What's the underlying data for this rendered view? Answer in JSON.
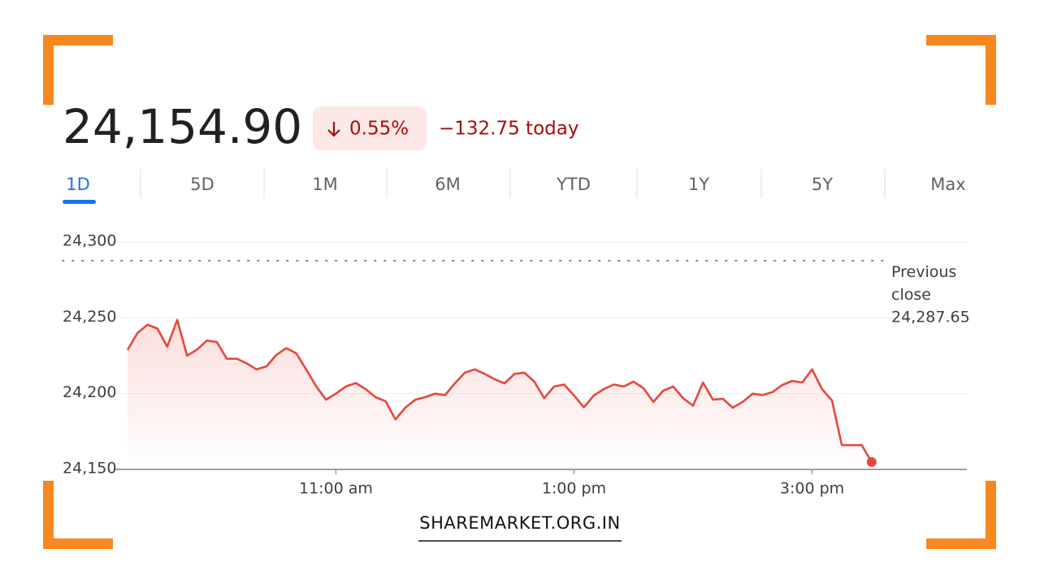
{
  "quote": {
    "price": "24,154.90",
    "change_percent": "0.55%",
    "change": "−132.75 today"
  },
  "tabs": [
    "1D",
    "5D",
    "1M",
    "6M",
    "YTD",
    "1Y",
    "5Y",
    "Max"
  ],
  "chart_data": {
    "type": "line",
    "color": "#e5483d",
    "x": [
      9.25,
      9.333,
      9.417,
      9.5,
      9.583,
      9.667,
      9.75,
      9.833,
      9.917,
      10,
      10.083,
      10.167,
      10.25,
      10.333,
      10.417,
      10.5,
      10.583,
      10.667,
      10.75,
      10.833,
      10.917,
      11,
      11.083,
      11.167,
      11.25,
      11.333,
      11.417,
      11.5,
      11.583,
      11.667,
      11.75,
      11.833,
      11.917,
      12,
      12.083,
      12.167,
      12.25,
      12.333,
      12.417,
      12.5,
      12.583,
      12.667,
      12.75,
      12.833,
      12.917,
      13,
      13.083,
      13.167,
      13.25,
      13.333,
      13.417,
      13.5,
      13.583,
      13.667,
      13.75,
      13.833,
      13.917,
      14,
      14.083,
      14.167,
      14.25,
      14.333,
      14.417,
      14.5,
      14.583,
      14.667,
      14.75,
      14.833,
      14.917,
      15,
      15.083,
      15.167,
      15.25,
      15.333,
      15.417,
      15.5
    ],
    "values": [
      24228.8,
      24240,
      24245.4,
      24243,
      24231,
      24248.6,
      24225,
      24229,
      24235,
      24234,
      24223,
      24223,
      24220,
      24216,
      24218,
      24225.6,
      24230,
      24226.6,
      24216,
      24205,
      24196,
      24200,
      24204.7,
      24207,
      24203,
      24197.7,
      24195,
      24183,
      24190.7,
      24196,
      24197.7,
      24200,
      24199,
      24206.8,
      24213.8,
      24216,
      24213,
      24209.5,
      24206.8,
      24213,
      24213.8,
      24207.9,
      24197,
      24204.7,
      24206,
      24198.8,
      24191,
      24198.8,
      24203,
      24206,
      24204.7,
      24207.9,
      24203.6,
      24194.5,
      24202,
      24204.7,
      24197,
      24192,
      24207.3,
      24196,
      24196.6,
      24190.7,
      24194.5,
      24200,
      24199,
      24201,
      24205.7,
      24208.4,
      24207.3,
      24216,
      24203,
      24195.5,
      24166,
      24166,
      24166,
      24154.9
    ],
    "xlim": [
      9.25,
      16.3
    ],
    "xticks": [
      {
        "value": 11,
        "label": "11:00 am"
      },
      {
        "value": 13,
        "label": "1:00 pm"
      },
      {
        "value": 15,
        "label": "3:00 pm"
      }
    ],
    "ylim": [
      24150,
      24300
    ],
    "yticks": [
      {
        "value": 24150,
        "label": "24,150"
      },
      {
        "value": 24200,
        "label": "24,200"
      },
      {
        "value": 24250,
        "label": "24,250"
      },
      {
        "value": 24300,
        "label": "24,300"
      }
    ],
    "grid": true,
    "previous_close": {
      "label": "Previous close",
      "value": 24287.65,
      "value_label": "24,287.65"
    }
  },
  "footer": "SHAREMARKET.ORG.IN"
}
